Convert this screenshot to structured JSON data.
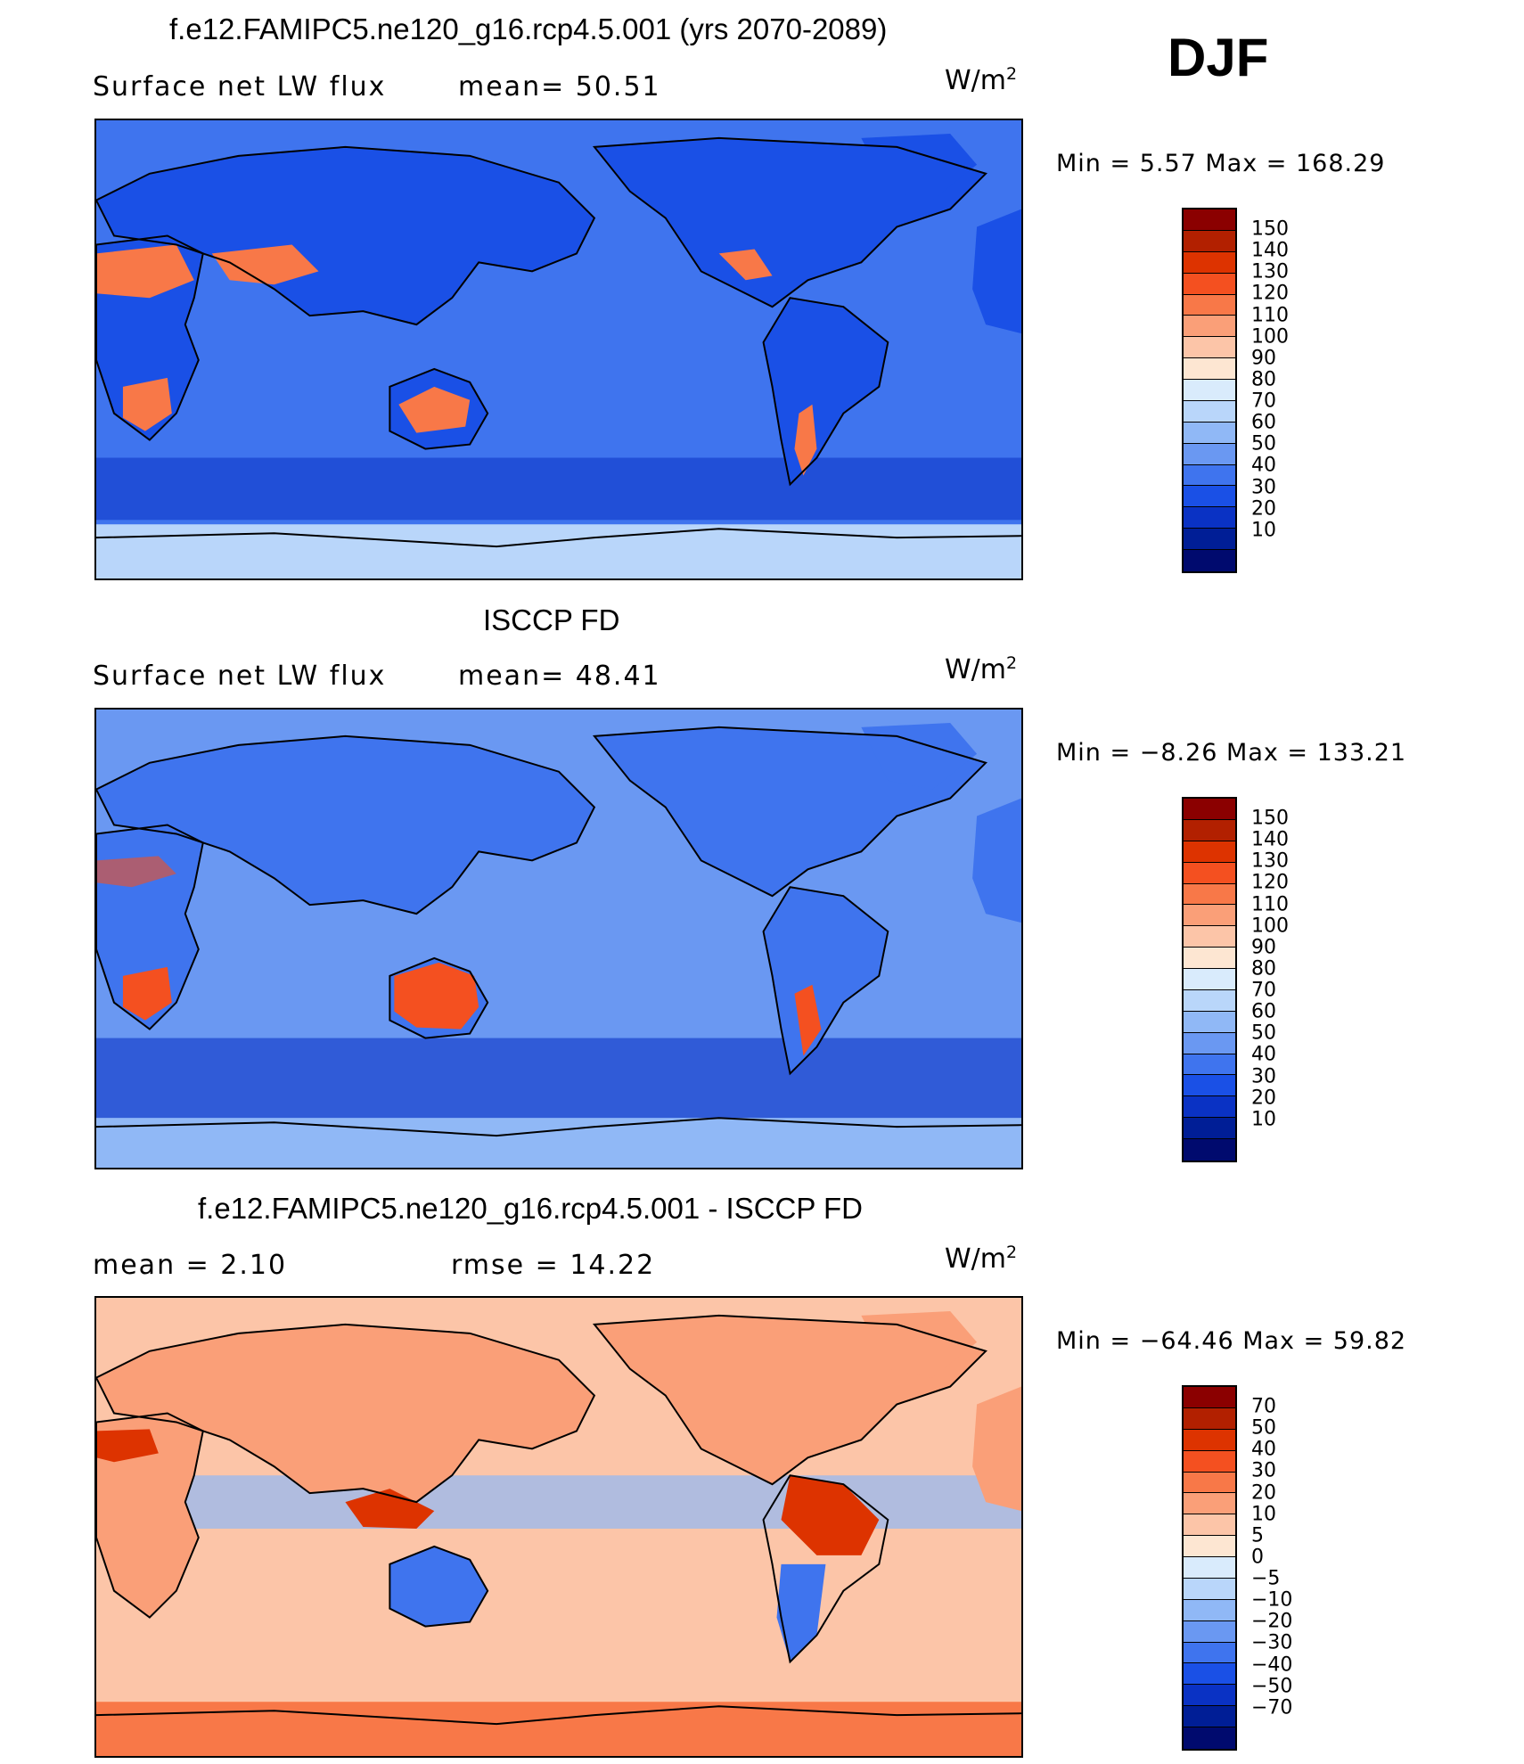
{
  "season": "DJF",
  "units_base": "W/m",
  "units_exp": "2",
  "panels": [
    {
      "title": "f.e12.FAMIPC5.ne120_g16.rcp4.5.001 (yrs 2070-2089)",
      "left_label": "Surface net LW flux",
      "right_label": "mean=  50.51",
      "minmax": "Min =    5.57  Max  =  168.29",
      "colorbar_labels": [
        "150",
        "140",
        "130",
        "120",
        "110",
        "100",
        "90",
        "80",
        "70",
        "60",
        "50",
        "40",
        "30",
        "20",
        "10"
      ],
      "colors": [
        "#8B0000",
        "#B22000",
        "#DD3300",
        "#F45020",
        "#F87848",
        "#FA9F78",
        "#FCC5A8",
        "#FDE6D2",
        "#D9EBFC",
        "#B9D6FA",
        "#90B8F6",
        "#6A98F2",
        "#3F74EE",
        "#1A50E6",
        "#0A32C4",
        "#001E96",
        "#000A6E"
      ],
      "ocean_color": "#3F74EE",
      "land_color": "#1A50E6",
      "hot_color": "#F87848",
      "polar_color": "#B9D6FA"
    },
    {
      "title": "ISCCP FD",
      "left_label": "Surface net LW flux",
      "right_label": "mean=  48.41",
      "minmax": "Min =   −8.26  Max  =  133.21",
      "colorbar_labels": [
        "150",
        "140",
        "130",
        "120",
        "110",
        "100",
        "90",
        "80",
        "70",
        "60",
        "50",
        "40",
        "30",
        "20",
        "10"
      ],
      "colors": [
        "#8B0000",
        "#B22000",
        "#DD3300",
        "#F45020",
        "#F87848",
        "#FA9F78",
        "#FCC5A8",
        "#FDE6D2",
        "#D9EBFC",
        "#B9D6FA",
        "#90B8F6",
        "#6A98F2",
        "#3F74EE",
        "#1A50E6",
        "#0A32C4",
        "#001E96",
        "#000A6E"
      ],
      "ocean_color": "#6A98F2",
      "land_color": "#3F74EE",
      "hot_color": "#F45020",
      "polar_color": "#90B8F6"
    },
    {
      "title": "f.e12.FAMIPC5.ne120_g16.rcp4.5.001 - ISCCP FD",
      "left_label": "mean =    2.10",
      "right_label": "rmse  =   14.22",
      "minmax": "Min  = −64.46  Max  =   59.82",
      "colorbar_labels": [
        "70",
        "50",
        "40",
        "30",
        "20",
        "10",
        "5",
        "0",
        "−5",
        "−10",
        "−20",
        "−30",
        "−40",
        "−50",
        "−70"
      ],
      "colors": [
        "#8B0000",
        "#B22000",
        "#DD3300",
        "#F45020",
        "#F87848",
        "#FA9F78",
        "#FCC5A8",
        "#FDE6D2",
        "#D9EBFC",
        "#B9D6FA",
        "#90B8F6",
        "#6A98F2",
        "#3F74EE",
        "#1A50E6",
        "#0A32C4",
        "#001E96",
        "#000A6E"
      ],
      "ocean_color": "#FCC5A8",
      "land_color": "#FA9F78",
      "hot_color": "#DD3300",
      "polar_color": "#F87848"
    }
  ]
}
